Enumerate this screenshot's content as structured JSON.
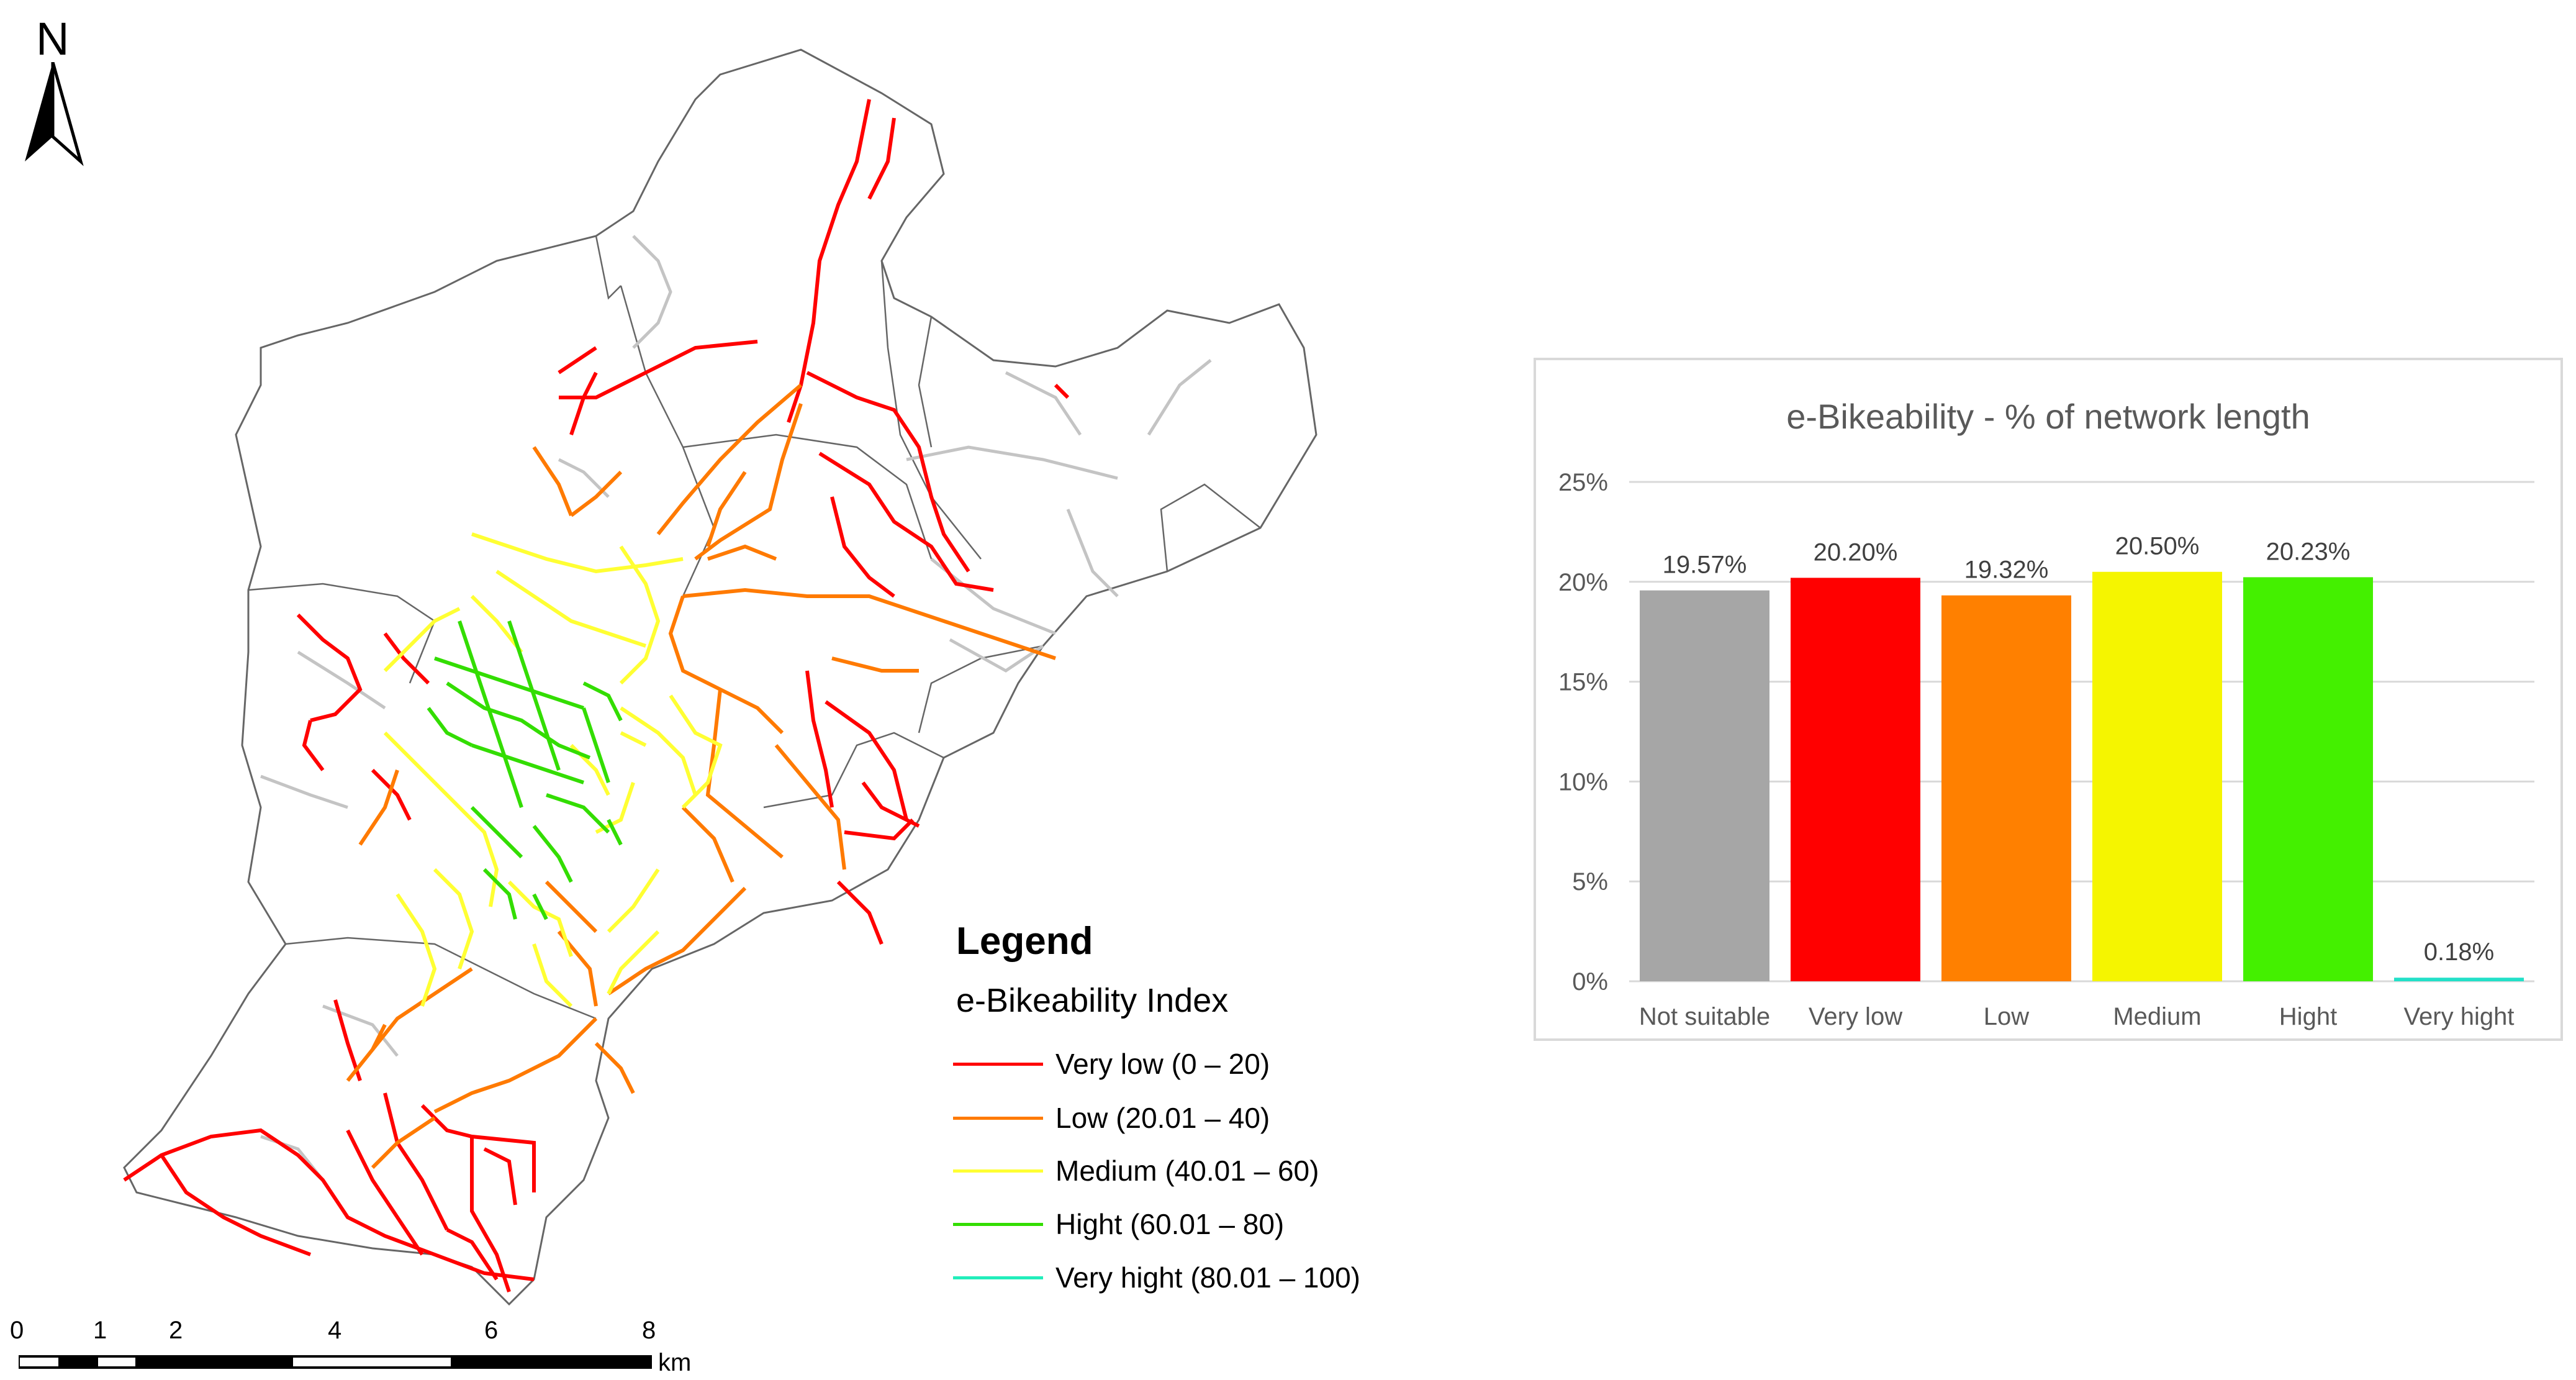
{
  "north_arrow": {
    "label": "N",
    "icon": "north-arrow-icon"
  },
  "legend": {
    "title": "Legend",
    "subtitle": "e-Bikeability Index",
    "items": [
      {
        "label": "Very low (0 – 20)",
        "color": "#ff0000"
      },
      {
        "label": "Low (20.01 – 40)",
        "color": "#ff7a00"
      },
      {
        "label": "Medium (40.01 – 60)",
        "color": "#ffff33"
      },
      {
        "label": "Hight (60.01 – 80)",
        "color": "#33dd00"
      },
      {
        "label": "Very hight (80.01 – 100)",
        "color": "#22eebb"
      }
    ]
  },
  "scale_bar": {
    "labels": [
      "0",
      "1",
      "2",
      "4",
      "6",
      "8"
    ],
    "values": [
      0,
      1,
      2,
      4,
      6,
      8
    ],
    "unit": "km"
  },
  "map_colors": {
    "boundary": "#666666",
    "not_suitable": "#c4c4c4",
    "very_low": "#ff0000",
    "low": "#ff7a00",
    "medium": "#ffff33",
    "hight": "#33dd00"
  },
  "chart_data": {
    "type": "bar",
    "title": "e-Bikeability - % of network length",
    "categories": [
      "Not suitable",
      "Very low",
      "Low",
      "Medium",
      "Hight",
      "Very hight"
    ],
    "values": [
      19.57,
      20.2,
      19.32,
      20.5,
      20.23,
      0.18
    ],
    "data_labels": [
      "19.57%",
      "20.20%",
      "19.32%",
      "20.50%",
      "20.23%",
      "0.18%"
    ],
    "colors": [
      "#a6a6a6",
      "#ff0000",
      "#ff8000",
      "#f5f500",
      "#44f000",
      "#22e0c8"
    ],
    "y_ticks": [
      0,
      5,
      10,
      15,
      20,
      25
    ],
    "y_tick_labels": [
      "0%",
      "5%",
      "10%",
      "15%",
      "20%",
      "25%"
    ],
    "ylim": [
      0,
      25
    ],
    "xlabel": "",
    "ylabel": "",
    "grid": true
  }
}
